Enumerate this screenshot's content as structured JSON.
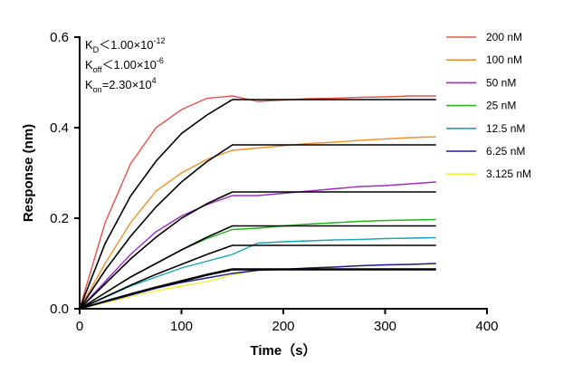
{
  "chart_data": {
    "type": "line",
    "x_label": "Time（s）",
    "y_label": "Response (nm)",
    "annotations": [
      {
        "symbol": "K",
        "subscript": "D",
        "text": "＜1.00×10",
        "exponent": "-12"
      },
      {
        "symbol": "K",
        "subscript": "off",
        "text": "＜1.00×10",
        "exponent": "-6"
      },
      {
        "symbol": "K",
        "subscript": "on",
        "text": "=2.30×10",
        "exponent": "4"
      }
    ],
    "x": [
      0,
      25,
      50,
      75,
      100,
      125,
      150,
      175,
      200,
      225,
      250,
      275,
      300,
      325,
      350
    ],
    "xlim": [
      0,
      400
    ],
    "xticks": [
      0,
      100,
      200,
      300,
      400
    ],
    "ylim": [
      0,
      0.6
    ],
    "yticks": [
      {
        "value": 0,
        "label": "0.0"
      },
      {
        "value": 0.2,
        "label": "0.2"
      },
      {
        "value": 0.4,
        "label": "0.4"
      },
      {
        "value": 0.6,
        "label": "0.6"
      }
    ],
    "series": [
      {
        "name": "200 nM",
        "color": "#e8504a",
        "values": [
          0,
          0.19,
          0.32,
          0.4,
          0.44,
          0.465,
          0.47,
          0.458,
          0.461,
          0.464,
          0.465,
          0.467,
          0.468,
          0.47,
          0.47
        ]
      },
      {
        "name": "100 nM",
        "color": "#f0922a",
        "values": [
          0,
          0.1,
          0.19,
          0.26,
          0.3,
          0.33,
          0.35,
          0.355,
          0.36,
          0.365,
          0.368,
          0.372,
          0.375,
          0.378,
          0.38
        ]
      },
      {
        "name": "50 nM",
        "color": "#a02cc8",
        "values": [
          0,
          0.06,
          0.12,
          0.17,
          0.205,
          0.23,
          0.25,
          0.25,
          0.255,
          0.26,
          0.265,
          0.27,
          0.272,
          0.276,
          0.28
        ]
      },
      {
        "name": "25 nM",
        "color": "#22b522",
        "values": [
          0,
          0.035,
          0.07,
          0.1,
          0.13,
          0.155,
          0.175,
          0.178,
          0.183,
          0.187,
          0.19,
          0.193,
          0.195,
          0.196,
          0.197
        ]
      },
      {
        "name": "12.5 nM",
        "color": "#1aa6b0",
        "values": [
          0,
          0.025,
          0.05,
          0.07,
          0.09,
          0.105,
          0.12,
          0.145,
          0.148,
          0.15,
          0.152,
          0.153,
          0.155,
          0.156,
          0.157
        ]
      },
      {
        "name": "6.25 nM",
        "color": "#1a1aa0",
        "values": [
          0,
          0.015,
          0.03,
          0.045,
          0.058,
          0.068,
          0.078,
          0.085,
          0.087,
          0.09,
          0.092,
          0.095,
          0.097,
          0.098,
          0.1
        ]
      },
      {
        "name": "3.125 nM",
        "color": "#f0f03a",
        "values": [
          0,
          0.013,
          0.027,
          0.04,
          0.05,
          0.06,
          0.075,
          0.085,
          0.087,
          0.09,
          0.093,
          0.095,
          0.097,
          0.098,
          0.099
        ]
      }
    ],
    "fit_series": [
      {
        "color": "#000000",
        "values": [
          0,
          0.144,
          0.249,
          0.326,
          0.387,
          0.428,
          0.462,
          0.462,
          0.462,
          0.462,
          0.462,
          0.462,
          0.462,
          0.462,
          0.462
        ]
      },
      {
        "color": "#000000",
        "values": [
          0,
          0.085,
          0.16,
          0.225,
          0.28,
          0.325,
          0.362,
          0.362,
          0.362,
          0.362,
          0.362,
          0.362,
          0.362,
          0.362,
          0.362
        ]
      },
      {
        "color": "#000000",
        "values": [
          0,
          0.055,
          0.11,
          0.158,
          0.2,
          0.232,
          0.258,
          0.258,
          0.258,
          0.258,
          0.258,
          0.258,
          0.258,
          0.258,
          0.258
        ]
      },
      {
        "color": "#000000",
        "values": [
          0,
          0.035,
          0.07,
          0.1,
          0.13,
          0.158,
          0.183,
          0.183,
          0.183,
          0.183,
          0.183,
          0.183,
          0.183,
          0.183,
          0.183
        ]
      },
      {
        "color": "#000000",
        "values": [
          0,
          0.026,
          0.052,
          0.076,
          0.098,
          0.12,
          0.14,
          0.14,
          0.14,
          0.14,
          0.14,
          0.14,
          0.14,
          0.14,
          0.14
        ]
      },
      {
        "color": "#000000",
        "values": [
          0,
          0.017,
          0.033,
          0.048,
          0.062,
          0.076,
          0.088,
          0.088,
          0.088,
          0.088,
          0.088,
          0.088,
          0.088,
          0.088,
          0.088
        ]
      },
      {
        "color": "#000000",
        "values": [
          0,
          0.016,
          0.032,
          0.047,
          0.06,
          0.074,
          0.086,
          0.086,
          0.086,
          0.086,
          0.086,
          0.086,
          0.086,
          0.086,
          0.086
        ]
      }
    ]
  }
}
